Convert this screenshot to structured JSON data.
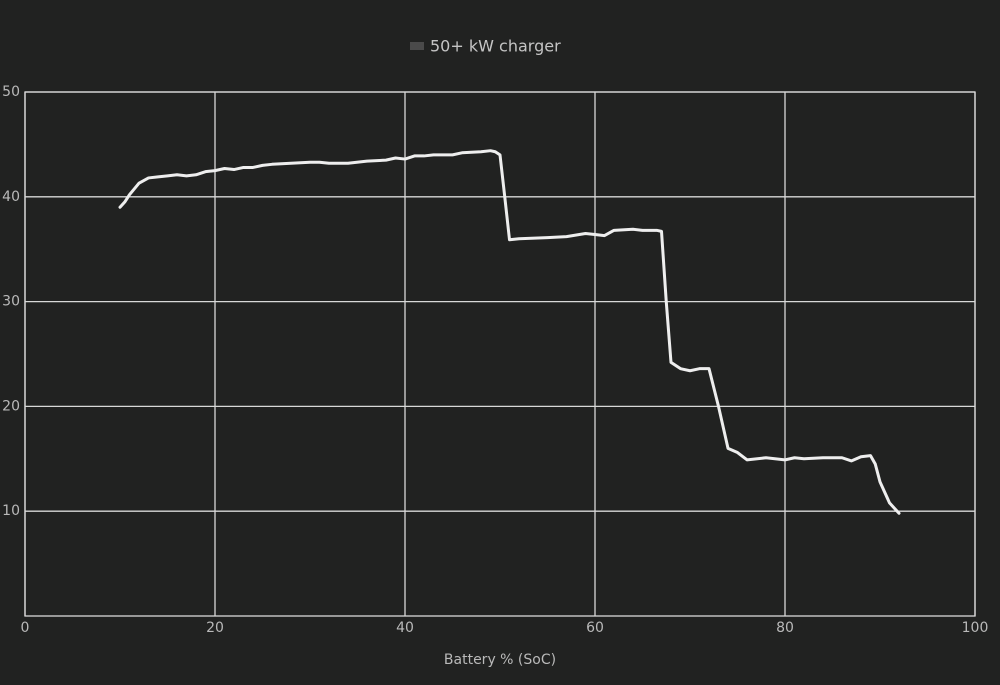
{
  "chart_data": {
    "type": "line",
    "series": [
      {
        "name": "50+ kW charger",
        "color": "#eeeeee",
        "x": [
          10,
          10.5,
          11,
          12,
          13,
          14,
          15,
          16,
          17,
          18,
          19,
          20,
          21,
          22,
          23,
          24,
          25,
          26,
          28,
          30,
          31,
          32,
          34,
          36,
          38,
          39,
          40,
          41,
          42,
          43,
          45,
          46,
          48,
          49,
          49.5,
          50,
          50.5,
          51,
          52,
          55,
          57,
          59,
          60,
          61,
          62,
          64,
          65,
          66.5,
          67,
          67.5,
          68,
          69,
          70,
          71,
          72,
          73,
          74,
          75,
          76,
          78,
          80,
          81,
          82,
          84,
          86,
          87,
          88,
          89,
          89.5,
          90,
          91,
          92
        ],
        "values": [
          39.0,
          39.5,
          40.2,
          41.3,
          41.8,
          41.9,
          42.0,
          42.1,
          42.0,
          42.1,
          42.4,
          42.5,
          42.7,
          42.6,
          42.8,
          42.8,
          43.0,
          43.1,
          43.2,
          43.3,
          43.3,
          43.2,
          43.2,
          43.4,
          43.5,
          43.7,
          43.6,
          43.9,
          43.9,
          44.0,
          44.0,
          44.2,
          44.3,
          44.4,
          44.3,
          44.0,
          40.0,
          35.9,
          36.0,
          36.1,
          36.2,
          36.5,
          36.4,
          36.3,
          36.8,
          36.9,
          36.8,
          36.8,
          36.7,
          30.0,
          24.2,
          23.6,
          23.4,
          23.6,
          23.6,
          20.0,
          16.0,
          15.6,
          14.9,
          15.1,
          14.9,
          15.1,
          15.0,
          15.1,
          15.1,
          14.8,
          15.2,
          15.3,
          14.5,
          12.8,
          10.8,
          9.8
        ]
      }
    ],
    "x_label": "Battery % (SoC)",
    "xlim": [
      0,
      100
    ],
    "xticks": [
      0,
      20,
      40,
      60,
      80,
      100
    ],
    "ylim": [
      0,
      50
    ],
    "yticks": [
      10,
      20,
      30,
      40,
      50
    ],
    "grid": true
  }
}
